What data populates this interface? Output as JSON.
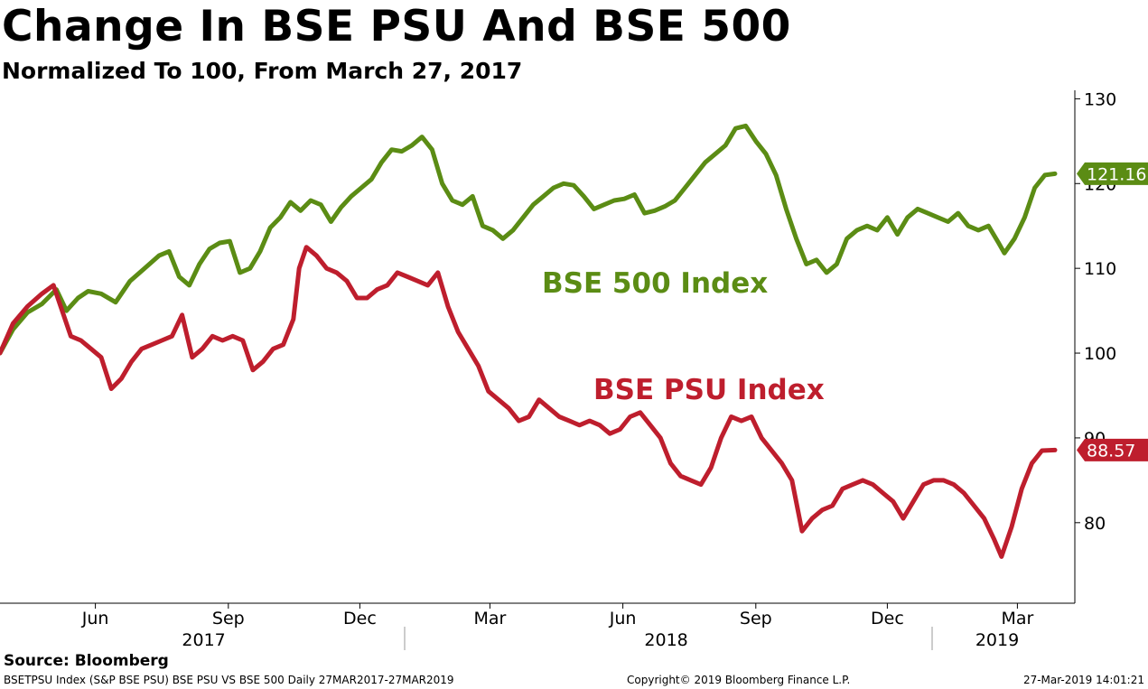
{
  "title": "Change In BSE PSU And BSE 500",
  "subtitle": "Normalized To 100, From March 27, 2017",
  "source": "Source: Bloomberg",
  "footer": {
    "left": "BSETPSU Index (S&P BSE PSU) BSE PSU VS BSE 500  Daily 27MAR2017-27MAR2019",
    "center": "Copyright© 2019 Bloomberg Finance L.P.",
    "right": "27-Mar-2019 14:01:21"
  },
  "chart_data": {
    "type": "line",
    "x_start": "2017-03-27",
    "x_end": "2019-03-27",
    "ylim": [
      70.5,
      131
    ],
    "yticks": [
      80,
      90,
      100,
      110,
      120,
      130
    ],
    "month_ticks": [
      {
        "label": "Jun",
        "date": "2017-06-01"
      },
      {
        "label": "Sep",
        "date": "2017-09-01"
      },
      {
        "label": "Dec",
        "date": "2017-12-01"
      },
      {
        "label": "Mar",
        "date": "2018-03-01"
      },
      {
        "label": "Jun",
        "date": "2018-06-01"
      },
      {
        "label": "Sep",
        "date": "2018-09-01"
      },
      {
        "label": "Dec",
        "date": "2018-12-01"
      },
      {
        "label": "Mar",
        "date": "2019-03-01"
      }
    ],
    "year_labels": [
      {
        "label": "2017",
        "date": "2017-08-15"
      },
      {
        "label": "2018",
        "date": "2018-07-01"
      },
      {
        "label": "2019",
        "date": "2019-02-15"
      }
    ],
    "year_dividers": [
      "2018-01-01",
      "2019-01-01"
    ],
    "series": [
      {
        "name": "BSE 500 Index",
        "color": "#5b8c14",
        "last_label": "121.16",
        "points": [
          [
            "2017-03-27",
            100.0
          ],
          [
            "2017-04-05",
            102.8
          ],
          [
            "2017-04-15",
            104.8
          ],
          [
            "2017-04-25",
            105.8
          ],
          [
            "2017-05-05",
            107.5
          ],
          [
            "2017-05-12",
            105.0
          ],
          [
            "2017-05-20",
            106.5
          ],
          [
            "2017-05-27",
            107.3
          ],
          [
            "2017-06-05",
            107.0
          ],
          [
            "2017-06-15",
            106.0
          ],
          [
            "2017-06-25",
            108.5
          ],
          [
            "2017-07-05",
            110.0
          ],
          [
            "2017-07-15",
            111.5
          ],
          [
            "2017-07-22",
            112.0
          ],
          [
            "2017-07-29",
            109.0
          ],
          [
            "2017-08-05",
            108.0
          ],
          [
            "2017-08-12",
            110.5
          ],
          [
            "2017-08-19",
            112.3
          ],
          [
            "2017-08-26",
            113.0
          ],
          [
            "2017-09-02",
            113.2
          ],
          [
            "2017-09-09",
            109.5
          ],
          [
            "2017-09-16",
            110.0
          ],
          [
            "2017-09-23",
            112.0
          ],
          [
            "2017-09-30",
            114.8
          ],
          [
            "2017-10-07",
            116.0
          ],
          [
            "2017-10-14",
            117.8
          ],
          [
            "2017-10-21",
            116.8
          ],
          [
            "2017-10-28",
            118.0
          ],
          [
            "2017-11-04",
            117.5
          ],
          [
            "2017-11-11",
            115.5
          ],
          [
            "2017-11-18",
            117.2
          ],
          [
            "2017-11-25",
            118.5
          ],
          [
            "2017-12-02",
            119.5
          ],
          [
            "2017-12-09",
            120.5
          ],
          [
            "2017-12-16",
            122.5
          ],
          [
            "2017-12-23",
            124.0
          ],
          [
            "2017-12-30",
            123.8
          ],
          [
            "2018-01-06",
            124.5
          ],
          [
            "2018-01-13",
            125.5
          ],
          [
            "2018-01-20",
            124.0
          ],
          [
            "2018-01-27",
            120.0
          ],
          [
            "2018-02-03",
            118.0
          ],
          [
            "2018-02-10",
            117.5
          ],
          [
            "2018-02-17",
            118.5
          ],
          [
            "2018-02-24",
            115.0
          ],
          [
            "2018-03-03",
            114.5
          ],
          [
            "2018-03-10",
            113.5
          ],
          [
            "2018-03-17",
            114.5
          ],
          [
            "2018-03-24",
            116.0
          ],
          [
            "2018-03-31",
            117.5
          ],
          [
            "2018-04-07",
            118.5
          ],
          [
            "2018-04-14",
            119.5
          ],
          [
            "2018-04-21",
            120.0
          ],
          [
            "2018-04-28",
            119.8
          ],
          [
            "2018-05-05",
            118.5
          ],
          [
            "2018-05-12",
            117.0
          ],
          [
            "2018-05-19",
            117.5
          ],
          [
            "2018-05-26",
            118.0
          ],
          [
            "2018-06-02",
            118.2
          ],
          [
            "2018-06-09",
            118.7
          ],
          [
            "2018-06-16",
            116.5
          ],
          [
            "2018-06-23",
            116.8
          ],
          [
            "2018-06-30",
            117.3
          ],
          [
            "2018-07-07",
            118.0
          ],
          [
            "2018-07-14",
            119.5
          ],
          [
            "2018-07-21",
            121.0
          ],
          [
            "2018-07-28",
            122.5
          ],
          [
            "2018-08-04",
            123.5
          ],
          [
            "2018-08-11",
            124.5
          ],
          [
            "2018-08-18",
            126.5
          ],
          [
            "2018-08-25",
            126.8
          ],
          [
            "2018-09-01",
            125.0
          ],
          [
            "2018-09-08",
            123.5
          ],
          [
            "2018-09-15",
            121.0
          ],
          [
            "2018-09-22",
            117.0
          ],
          [
            "2018-09-29",
            113.5
          ],
          [
            "2018-10-06",
            110.5
          ],
          [
            "2018-10-13",
            111.0
          ],
          [
            "2018-10-20",
            109.5
          ],
          [
            "2018-10-27",
            110.5
          ],
          [
            "2018-11-03",
            113.5
          ],
          [
            "2018-11-10",
            114.5
          ],
          [
            "2018-11-17",
            115.0
          ],
          [
            "2018-11-24",
            114.5
          ],
          [
            "2018-12-01",
            116.0
          ],
          [
            "2018-12-08",
            114.0
          ],
          [
            "2018-12-15",
            116.0
          ],
          [
            "2018-12-22",
            117.0
          ],
          [
            "2018-12-29",
            116.5
          ],
          [
            "2019-01-05",
            116.0
          ],
          [
            "2019-01-12",
            115.5
          ],
          [
            "2019-01-19",
            116.5
          ],
          [
            "2019-01-26",
            115.0
          ],
          [
            "2019-02-02",
            114.5
          ],
          [
            "2019-02-09",
            115.0
          ],
          [
            "2019-02-16",
            113.0
          ],
          [
            "2019-02-20",
            111.8
          ],
          [
            "2019-02-27",
            113.5
          ],
          [
            "2019-03-06",
            116.0
          ],
          [
            "2019-03-13",
            119.5
          ],
          [
            "2019-03-20",
            121.0
          ],
          [
            "2019-03-27",
            121.16
          ]
        ]
      },
      {
        "name": "BSE PSU Index",
        "color": "#be1e2d",
        "last_label": "88.57",
        "points": [
          [
            "2017-03-27",
            100.0
          ],
          [
            "2017-04-05",
            103.5
          ],
          [
            "2017-04-15",
            105.5
          ],
          [
            "2017-04-25",
            107.0
          ],
          [
            "2017-05-03",
            108.0
          ],
          [
            "2017-05-10",
            104.5
          ],
          [
            "2017-05-15",
            102.0
          ],
          [
            "2017-05-22",
            101.5
          ],
          [
            "2017-05-29",
            100.5
          ],
          [
            "2017-06-05",
            99.5
          ],
          [
            "2017-06-12",
            95.8
          ],
          [
            "2017-06-19",
            97.0
          ],
          [
            "2017-06-26",
            99.0
          ],
          [
            "2017-07-03",
            100.5
          ],
          [
            "2017-07-10",
            101.0
          ],
          [
            "2017-07-17",
            101.5
          ],
          [
            "2017-07-24",
            102.0
          ],
          [
            "2017-07-31",
            104.5
          ],
          [
            "2017-08-07",
            99.5
          ],
          [
            "2017-08-14",
            100.5
          ],
          [
            "2017-08-21",
            102.0
          ],
          [
            "2017-08-28",
            101.5
          ],
          [
            "2017-09-04",
            102.0
          ],
          [
            "2017-09-11",
            101.5
          ],
          [
            "2017-09-18",
            98.0
          ],
          [
            "2017-09-25",
            99.0
          ],
          [
            "2017-10-02",
            100.5
          ],
          [
            "2017-10-09",
            101.0
          ],
          [
            "2017-10-16",
            104.0
          ],
          [
            "2017-10-20",
            110.0
          ],
          [
            "2017-10-25",
            112.5
          ],
          [
            "2017-11-01",
            111.5
          ],
          [
            "2017-11-08",
            110.0
          ],
          [
            "2017-11-15",
            109.5
          ],
          [
            "2017-11-22",
            108.5
          ],
          [
            "2017-11-29",
            106.5
          ],
          [
            "2017-12-06",
            106.5
          ],
          [
            "2017-12-13",
            107.5
          ],
          [
            "2017-12-20",
            108.0
          ],
          [
            "2017-12-27",
            109.5
          ],
          [
            "2018-01-03",
            109.0
          ],
          [
            "2018-01-10",
            108.5
          ],
          [
            "2018-01-17",
            108.0
          ],
          [
            "2018-01-24",
            109.5
          ],
          [
            "2018-01-31",
            105.5
          ],
          [
            "2018-02-07",
            102.5
          ],
          [
            "2018-02-14",
            100.5
          ],
          [
            "2018-02-21",
            98.5
          ],
          [
            "2018-02-28",
            95.5
          ],
          [
            "2018-03-07",
            94.5
          ],
          [
            "2018-03-14",
            93.5
          ],
          [
            "2018-03-21",
            92.0
          ],
          [
            "2018-03-28",
            92.5
          ],
          [
            "2018-04-04",
            94.5
          ],
          [
            "2018-04-11",
            93.5
          ],
          [
            "2018-04-18",
            92.5
          ],
          [
            "2018-04-25",
            92.0
          ],
          [
            "2018-05-02",
            91.5
          ],
          [
            "2018-05-09",
            92.0
          ],
          [
            "2018-05-16",
            91.5
          ],
          [
            "2018-05-23",
            90.5
          ],
          [
            "2018-05-30",
            91.0
          ],
          [
            "2018-06-06",
            92.5
          ],
          [
            "2018-06-13",
            93.0
          ],
          [
            "2018-06-20",
            91.5
          ],
          [
            "2018-06-27",
            90.0
          ],
          [
            "2018-07-04",
            87.0
          ],
          [
            "2018-07-11",
            85.5
          ],
          [
            "2018-07-18",
            85.0
          ],
          [
            "2018-07-25",
            84.5
          ],
          [
            "2018-08-01",
            86.5
          ],
          [
            "2018-08-08",
            90.0
          ],
          [
            "2018-08-15",
            92.5
          ],
          [
            "2018-08-22",
            92.0
          ],
          [
            "2018-08-29",
            92.5
          ],
          [
            "2018-09-05",
            90.0
          ],
          [
            "2018-09-12",
            88.5
          ],
          [
            "2018-09-19",
            87.0
          ],
          [
            "2018-09-26",
            85.0
          ],
          [
            "2018-10-03",
            79.0
          ],
          [
            "2018-10-10",
            80.5
          ],
          [
            "2018-10-17",
            81.5
          ],
          [
            "2018-10-24",
            82.0
          ],
          [
            "2018-10-31",
            84.0
          ],
          [
            "2018-11-07",
            84.5
          ],
          [
            "2018-11-14",
            85.0
          ],
          [
            "2018-11-21",
            84.5
          ],
          [
            "2018-11-28",
            83.5
          ],
          [
            "2018-12-05",
            82.5
          ],
          [
            "2018-12-12",
            80.5
          ],
          [
            "2018-12-19",
            82.5
          ],
          [
            "2018-12-26",
            84.5
          ],
          [
            "2019-01-02",
            85.0
          ],
          [
            "2019-01-09",
            85.0
          ],
          [
            "2019-01-16",
            84.5
          ],
          [
            "2019-01-23",
            83.5
          ],
          [
            "2019-01-30",
            82.0
          ],
          [
            "2019-02-06",
            80.5
          ],
          [
            "2019-02-13",
            78.0
          ],
          [
            "2019-02-18",
            76.0
          ],
          [
            "2019-02-25",
            79.5
          ],
          [
            "2019-03-04",
            84.0
          ],
          [
            "2019-03-11",
            87.0
          ],
          [
            "2019-03-18",
            88.5
          ],
          [
            "2019-03-27",
            88.57
          ]
        ]
      }
    ]
  }
}
